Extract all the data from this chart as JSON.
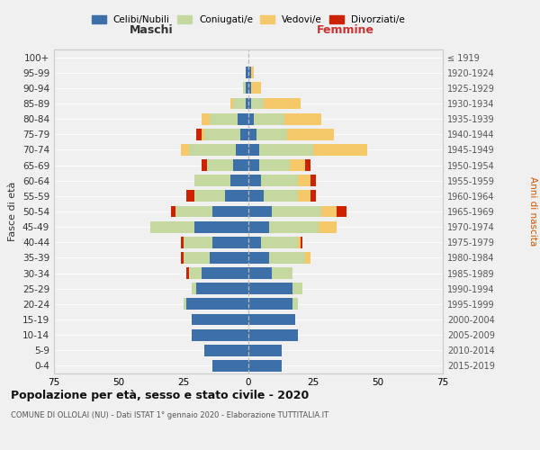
{
  "age_groups": [
    "0-4",
    "5-9",
    "10-14",
    "15-19",
    "20-24",
    "25-29",
    "30-34",
    "35-39",
    "40-44",
    "45-49",
    "50-54",
    "55-59",
    "60-64",
    "65-69",
    "70-74",
    "75-79",
    "80-84",
    "85-89",
    "90-94",
    "95-99",
    "100+"
  ],
  "birth_years": [
    "2015-2019",
    "2010-2014",
    "2005-2009",
    "2000-2004",
    "1995-1999",
    "1990-1994",
    "1985-1989",
    "1980-1984",
    "1975-1979",
    "1970-1974",
    "1965-1969",
    "1960-1964",
    "1955-1959",
    "1950-1954",
    "1945-1949",
    "1940-1944",
    "1935-1939",
    "1930-1934",
    "1925-1929",
    "1920-1924",
    "≤ 1919"
  ],
  "males": {
    "celibi": [
      14,
      17,
      22,
      22,
      24,
      20,
      18,
      15,
      14,
      21,
      14,
      9,
      7,
      6,
      5,
      3,
      4,
      1,
      1,
      1,
      0
    ],
    "coniugati": [
      0,
      0,
      0,
      0,
      1,
      2,
      5,
      10,
      11,
      17,
      14,
      12,
      14,
      10,
      18,
      14,
      11,
      5,
      1,
      0,
      0
    ],
    "vedovi": [
      0,
      0,
      0,
      0,
      0,
      0,
      0,
      0,
      0,
      0,
      0,
      0,
      0,
      0,
      3,
      1,
      3,
      1,
      0,
      0,
      0
    ],
    "divorziati": [
      0,
      0,
      0,
      0,
      0,
      0,
      1,
      1,
      1,
      0,
      2,
      3,
      0,
      2,
      0,
      2,
      0,
      0,
      0,
      0,
      0
    ]
  },
  "females": {
    "nubili": [
      13,
      13,
      19,
      18,
      17,
      17,
      9,
      8,
      5,
      8,
      9,
      6,
      5,
      4,
      4,
      3,
      2,
      1,
      1,
      1,
      0
    ],
    "coniugate": [
      0,
      0,
      0,
      0,
      2,
      4,
      8,
      14,
      14,
      19,
      19,
      13,
      14,
      12,
      21,
      12,
      12,
      5,
      0,
      0,
      0
    ],
    "vedove": [
      0,
      0,
      0,
      0,
      0,
      0,
      0,
      2,
      1,
      7,
      6,
      5,
      5,
      6,
      21,
      18,
      14,
      14,
      4,
      1,
      0
    ],
    "divorziate": [
      0,
      0,
      0,
      0,
      0,
      0,
      0,
      0,
      1,
      0,
      4,
      2,
      2,
      2,
      0,
      0,
      0,
      0,
      0,
      0,
      0
    ]
  },
  "colors": {
    "celibi_nubili": "#3d6fa8",
    "coniugati": "#c5d8a0",
    "vedovi": "#f5c96a",
    "divorziati": "#cc2200"
  },
  "title": "Popolazione per età, sesso e stato civile - 2020",
  "subtitle": "COMUNE DI OLLOLAI (NU) - Dati ISTAT 1° gennaio 2020 - Elaborazione TUTTITALIA.IT",
  "xlim": 75,
  "label_maschi": "Maschi",
  "label_femmine": "Femmine",
  "ylabel_left": "Fasce di età",
  "ylabel_right": "Anni di nascita",
  "legend_labels": [
    "Celibi/Nubili",
    "Coniugati/e",
    "Vedovi/e",
    "Divorziati/e"
  ],
  "background_color": "#f0f0f0"
}
